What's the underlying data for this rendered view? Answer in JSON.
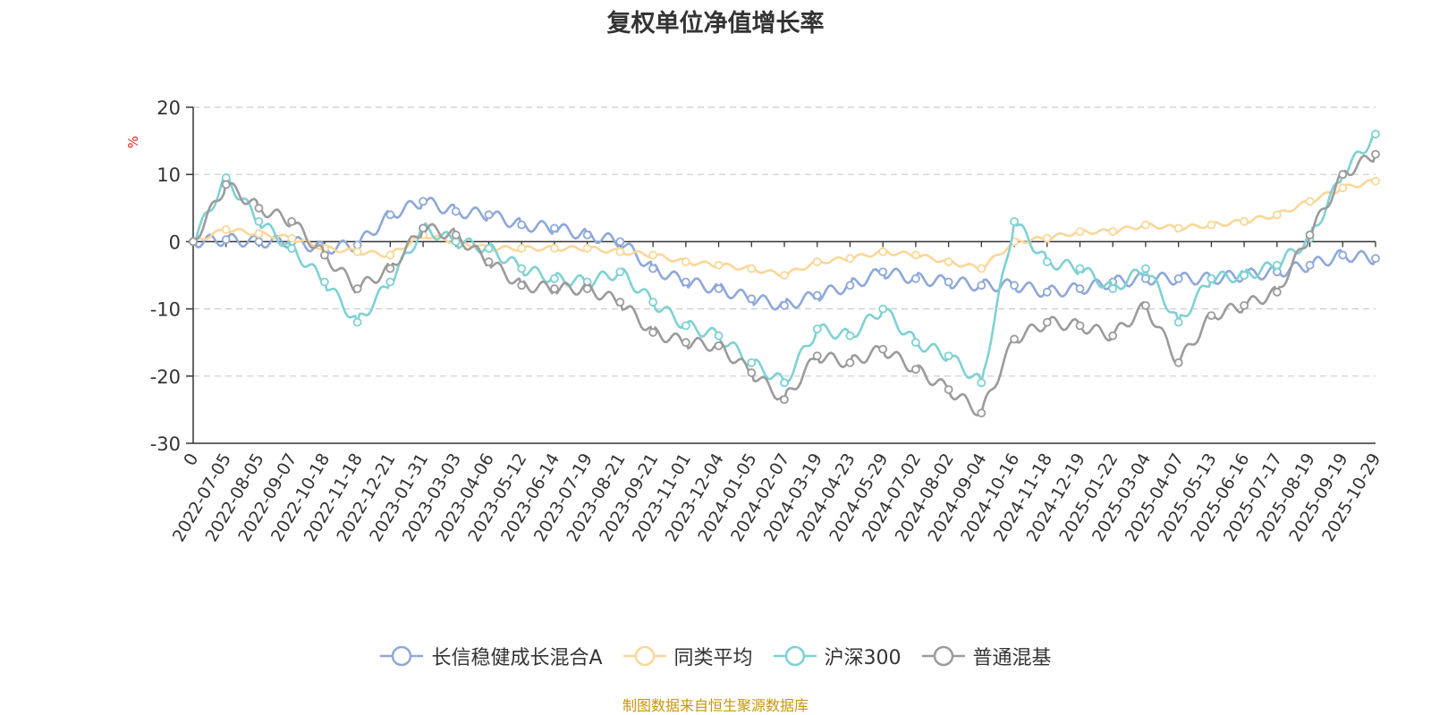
{
  "title": "复权单位净值增长率",
  "unit": "%",
  "source": "制图数据来自恒生聚源数据库",
  "chart_data": {
    "type": "line",
    "title": "复权单位净值增长率",
    "ylabel": "%",
    "ylim": [
      -30,
      20
    ],
    "yticks": [
      "20",
      "10",
      "0",
      "-10",
      "-20",
      "-30"
    ],
    "categories": [
      "0",
      "2022-07-05",
      "2022-08-05",
      "2022-09-07",
      "2022-10-18",
      "2022-11-18",
      "2022-12-21",
      "2023-01-31",
      "2023-03-03",
      "2023-04-06",
      "2023-05-12",
      "2023-06-14",
      "2023-07-19",
      "2023-08-21",
      "2023-09-21",
      "2023-11-01",
      "2023-12-04",
      "2024-01-05",
      "2024-02-07",
      "2024-03-19",
      "2024-04-23",
      "2024-05-29",
      "2024-07-02",
      "2024-08-02",
      "2024-09-04",
      "2024-10-16",
      "2024-11-18",
      "2024-12-19",
      "2025-01-22",
      "2025-03-04",
      "2025-04-07",
      "2025-05-13",
      "2025-06-16",
      "2025-07-17",
      "2025-08-19",
      "2025-09-19",
      "2025-10-29"
    ],
    "series": [
      {
        "name": "长信稳健成长混合A",
        "color": "#8ea8d8",
        "values": [
          0,
          0.3,
          0,
          0,
          -1.0,
          -0.5,
          4.0,
          6.0,
          4.5,
          4.0,
          2.5,
          2.0,
          1.0,
          0,
          -4.0,
          -6.0,
          -7.0,
          -8.5,
          -9.5,
          -8.0,
          -6.5,
          -4.5,
          -5.5,
          -6.0,
          -6.5,
          -6.5,
          -7.5,
          -7.0,
          -6.0,
          -5.5,
          -5.5,
          -5.5,
          -5.0,
          -4.5,
          -3.5,
          -2.0,
          -2.5
        ]
      },
      {
        "name": "同类平均",
        "color": "#fad797",
        "values": [
          0,
          1.8,
          1.2,
          0.5,
          -1.0,
          -1.5,
          -2.0,
          1.0,
          0,
          -1.0,
          -1.0,
          -1.0,
          -1.0,
          -1.5,
          -2.0,
          -3.0,
          -3.5,
          -4.0,
          -5.0,
          -3.0,
          -2.5,
          -1.5,
          -2.0,
          -3.0,
          -4.0,
          0,
          0.5,
          1.5,
          1.5,
          2.5,
          2.0,
          2.5,
          3.0,
          4.0,
          6.0,
          8.0,
          9.0
        ]
      },
      {
        "name": "沪深300",
        "color": "#7fd1d3",
        "values": [
          0,
          9.5,
          3.0,
          -1.0,
          -6.0,
          -12.0,
          -6.0,
          2.0,
          0,
          -1.0,
          -4.0,
          -5.5,
          -6.0,
          -4.5,
          -9.0,
          -12.5,
          -14.0,
          -18.0,
          -21.0,
          -13.0,
          -14.0,
          -10.0,
          -15.0,
          -17.0,
          -21.0,
          3.0,
          -3.0,
          -4.0,
          -7.0,
          -4.0,
          -12.0,
          -5.5,
          -5.0,
          -3.5,
          0.5,
          10.0,
          16.0
        ]
      },
      {
        "name": "普通混基",
        "color": "#9b9b9b",
        "values": [
          0,
          8.5,
          5.0,
          3.0,
          -2.0,
          -7.0,
          -4.0,
          2.0,
          1.0,
          -3.0,
          -6.5,
          -7.0,
          -7.0,
          -9.0,
          -13.5,
          -15.0,
          -15.5,
          -19.5,
          -23.5,
          -17.0,
          -18.0,
          -16.0,
          -19.0,
          -22.0,
          -25.5,
          -14.5,
          -12.0,
          -12.5,
          -14.0,
          -9.5,
          -18.0,
          -11.0,
          -9.5,
          -7.5,
          1.0,
          10.0,
          13.0
        ]
      }
    ]
  }
}
